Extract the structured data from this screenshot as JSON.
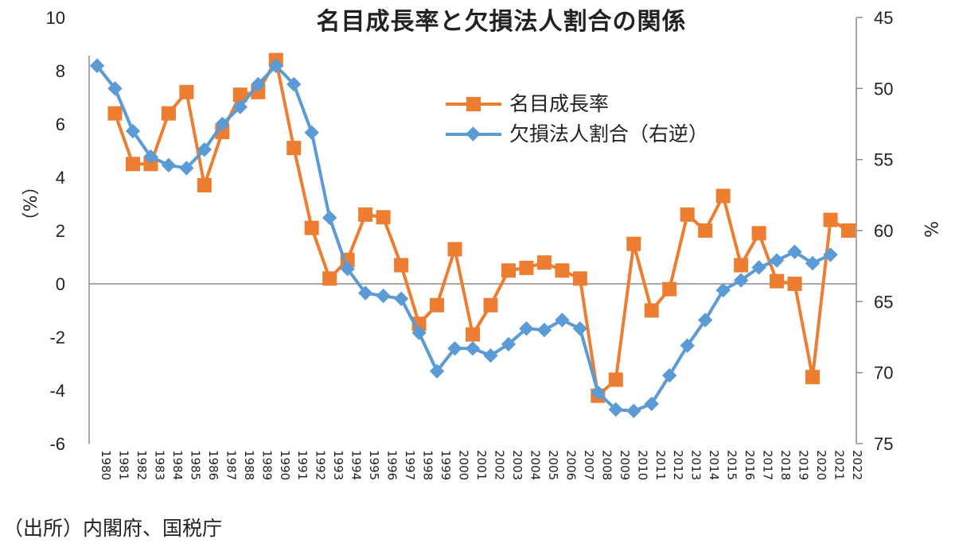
{
  "chart_data": {
    "type": "line",
    "title": "名目成長率と欠損法人割合の関係",
    "xlabel": "",
    "ylabel": "（%）",
    "ylabel_right": "%",
    "ylim": [
      -6,
      10
    ],
    "ylim_right": [
      75,
      45
    ],
    "right_axis_inverted": true,
    "yticks": [
      10,
      8,
      6,
      4,
      2,
      0,
      -2,
      -4,
      -6
    ],
    "yticks_right": [
      45,
      50,
      55,
      60,
      65,
      70,
      75
    ],
    "grid": false,
    "legend_position": "upper-center-right",
    "x": [
      "1980",
      "1981",
      "1982",
      "1983",
      "1984",
      "1985",
      "1986",
      "1987",
      "1988",
      "1989",
      "1990",
      "1991",
      "1992",
      "1993",
      "1994",
      "1995",
      "1996",
      "1997",
      "1998",
      "1999",
      "2000",
      "2001",
      "2002",
      "2003",
      "2004",
      "2005",
      "2006",
      "2007",
      "2008",
      "2009",
      "2010",
      "2011",
      "2012",
      "2013",
      "2014",
      "2015",
      "2016",
      "2017",
      "2018",
      "2019",
      "2020",
      "2021",
      "2022"
    ],
    "series": [
      {
        "name": "名目成長率",
        "axis": "left",
        "color": "#ED7D31",
        "marker": "square",
        "values": [
          null,
          6.4,
          4.5,
          4.5,
          6.4,
          7.2,
          3.7,
          5.7,
          7.1,
          7.2,
          8.4,
          5.1,
          2.1,
          0.2,
          0.9,
          2.6,
          2.5,
          0.7,
          -1.5,
          -0.8,
          1.3,
          -1.9,
          -0.8,
          0.5,
          0.6,
          0.8,
          0.5,
          0.2,
          -4.2,
          -3.6,
          1.5,
          -1.0,
          -0.2,
          2.6,
          2.0,
          3.3,
          0.7,
          1.9,
          0.1,
          0.0,
          -3.5,
          2.4,
          2.0
        ]
      },
      {
        "name": "欠損法人割合（右逆）",
        "axis": "right",
        "color": "#5B9BD5",
        "marker": "diamond",
        "values": [
          48.4,
          50.0,
          53.0,
          54.8,
          55.4,
          55.6,
          54.3,
          52.5,
          51.3,
          49.7,
          48.4,
          49.7,
          53.1,
          59.1,
          62.7,
          64.4,
          64.6,
          64.8,
          67.2,
          69.9,
          68.3,
          68.3,
          68.8,
          68.0,
          66.9,
          67.0,
          66.3,
          66.9,
          71.4,
          72.6,
          72.7,
          72.2,
          70.2,
          68.1,
          66.3,
          64.2,
          63.5,
          62.6,
          62.1,
          61.5,
          62.3,
          61.7,
          null
        ]
      }
    ],
    "source_note": "（出所）内閣府、国税庁"
  },
  "colors": {
    "orange": "#ED7D31",
    "blue": "#5B9BD5",
    "axis": "#8c8c8c"
  }
}
